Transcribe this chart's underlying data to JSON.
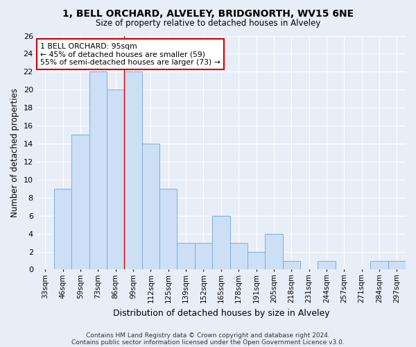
{
  "title1": "1, BELL ORCHARD, ALVELEY, BRIDGNORTH, WV15 6NE",
  "title2": "Size of property relative to detached houses in Alveley",
  "xlabel": "Distribution of detached houses by size in Alveley",
  "ylabel": "Number of detached properties",
  "categories": [
    "33sqm",
    "46sqm",
    "59sqm",
    "73sqm",
    "86sqm",
    "99sqm",
    "112sqm",
    "125sqm",
    "139sqm",
    "152sqm",
    "165sqm",
    "178sqm",
    "191sqm",
    "205sqm",
    "218sqm",
    "231sqm",
    "244sqm",
    "257sqm",
    "271sqm",
    "284sqm",
    "297sqm"
  ],
  "values": [
    0,
    9,
    15,
    22,
    20,
    22,
    14,
    9,
    3,
    3,
    6,
    3,
    2,
    4,
    1,
    0,
    1,
    0,
    0,
    1,
    1
  ],
  "bar_color": "#ccdff5",
  "bar_edge_color": "#7aafd4",
  "background_color": "#e8eef8",
  "grid_color": "#ffffff",
  "red_line_x": 4.5,
  "annotation_line1": "1 BELL ORCHARD: 95sqm",
  "annotation_line2": "← 45% of detached houses are smaller (59)",
  "annotation_line3": "55% of semi-detached houses are larger (73) →",
  "annotation_box_color": "#ffffff",
  "annotation_box_edge": "#cc0000",
  "footer1": "Contains HM Land Registry data © Crown copyright and database right 2024.",
  "footer2": "Contains public sector information licensed under the Open Government Licence v3.0.",
  "ylim": [
    0,
    26
  ],
  "yticks": [
    0,
    2,
    4,
    6,
    8,
    10,
    12,
    14,
    16,
    18,
    20,
    22,
    24,
    26
  ]
}
